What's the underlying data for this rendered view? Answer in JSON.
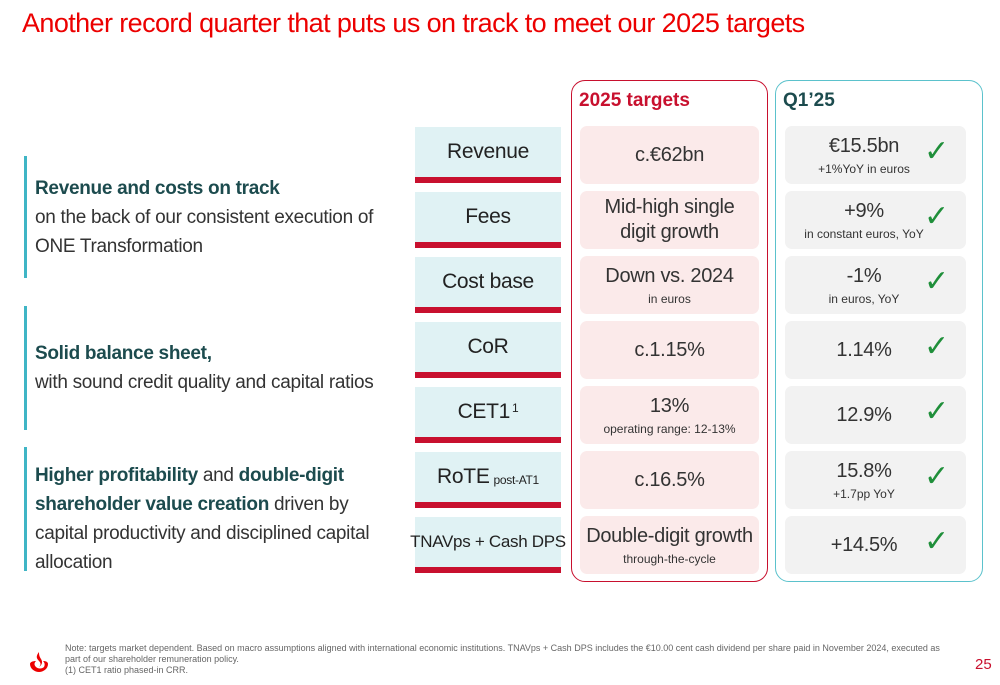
{
  "title": "Another record quarter that puts us on track to meet our 2025 targets",
  "pillars": [
    {
      "bold": "Revenue and costs on track",
      "rest": "on the back of our consistent execution of ONE Transformation"
    },
    {
      "bold": "Solid balance sheet,",
      "rest": "with sound credit quality and capital ratios"
    },
    {
      "bold1": "Higher profitability",
      "mid1": " and ",
      "bold2": "double-digit shareholder value creation",
      "rest": " driven by capital productivity and disciplined capital allocation"
    }
  ],
  "headers": {
    "targets": "2025 targets",
    "q1": "Q1’25"
  },
  "rows": [
    {
      "metric": "Revenue",
      "target": "c.€62bn",
      "target_sub": "",
      "actual": "€15.5bn",
      "actual_sub": "+1%YoY in euros"
    },
    {
      "metric": "Fees",
      "target": "Mid-high single digit growth",
      "target_sub": "",
      "actual": "+9%",
      "actual_sub": "in constant euros, YoY"
    },
    {
      "metric": "Cost base",
      "target": "Down vs. 2024",
      "target_sub": "in euros",
      "actual": "-1%",
      "actual_sub": "in euros, YoY"
    },
    {
      "metric": "CoR",
      "target": "c.1.15%",
      "target_sub": "",
      "actual": "1.14%",
      "actual_sub": ""
    },
    {
      "metric": "CET1",
      "metric_sup": "1",
      "target": "13%",
      "target_sub": "operating range: 12-13%",
      "actual": "12.9%",
      "actual_sub": ""
    },
    {
      "metric": "RoTE",
      "metric_suffix": "post-AT1",
      "target": "c.16.5%",
      "target_sub": "",
      "actual": "15.8%",
      "actual_sub": "+1.7pp YoY"
    },
    {
      "metric": "TNAVps + Cash DPS",
      "target": "Double-digit growth",
      "target_sub": "through-the-cycle",
      "actual": "+14.5%",
      "actual_sub": ""
    }
  ],
  "check_glyph": "✓",
  "footnote": {
    "line1": "Note: targets market dependent. Based on macro assumptions aligned with international economic institutions. TNAVps + Cash DPS includes the €10.00 cent cash dividend per share paid in November 2024, executed as",
    "line2": "part of our shareholder remuneration policy.",
    "line3": "(1) CET1 ratio phased-in CRR."
  },
  "page_number": "25",
  "colors": {
    "brand_red": "#ec0000",
    "border_red": "#c8102e",
    "teal": "#5bc2cc",
    "dark_teal": "#1c4b4e",
    "check_green": "#1f8f3a"
  },
  "icons": {
    "logo": "santander-flame-logo",
    "check": "check-icon"
  }
}
